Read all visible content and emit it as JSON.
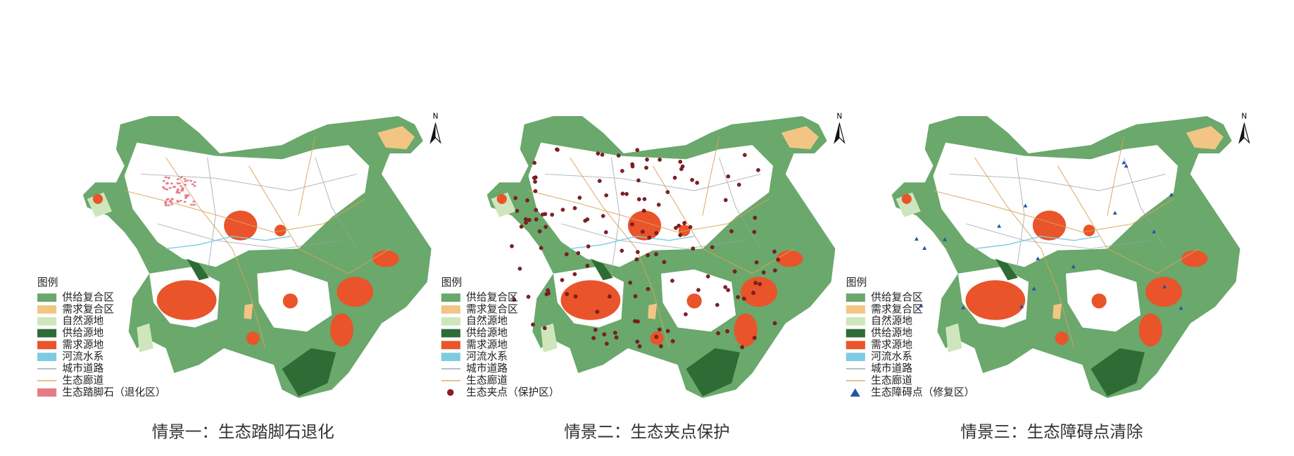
{
  "panels": [
    {
      "caption": "情景一：生态踏脚石退化",
      "legend_title": "图例",
      "north": "N",
      "legend": [
        {
          "label": "供给复合区",
          "color": "#6aa86c"
        },
        {
          "label": "需求复合区",
          "color": "#f2c584"
        },
        {
          "label": "自然源地",
          "color": "#cfe6bd"
        },
        {
          "label": "供给源地",
          "color": "#2f6b35"
        },
        {
          "label": "需求源地",
          "color": "#e9542b"
        },
        {
          "label": "河流水系",
          "color": "#7ccbe3"
        },
        {
          "label": "城市道路",
          "color": "#9aa0aa"
        },
        {
          "label": "生态廊道",
          "color": "#d9a35a"
        },
        {
          "label": "生态踏脚石（退化区）",
          "color": "#e57c88"
        }
      ]
    },
    {
      "caption": "情景二：生态夹点保护",
      "legend_title": "图例",
      "north": "N",
      "legend": [
        {
          "label": "供给复合区",
          "color": "#6aa86c"
        },
        {
          "label": "需求复合区",
          "color": "#f2c584"
        },
        {
          "label": "自然源地",
          "color": "#cfe6bd"
        },
        {
          "label": "供给源地",
          "color": "#2f6b35"
        },
        {
          "label": "需求源地",
          "color": "#e9542b"
        },
        {
          "label": "河流水系",
          "color": "#7ccbe3"
        },
        {
          "label": "城市道路",
          "color": "#9aa0aa"
        },
        {
          "label": "生态廊道",
          "color": "#d9a35a"
        },
        {
          "label": "生态夹点（保护区）",
          "color": "#8a1c22"
        }
      ]
    },
    {
      "caption": "情景三：生态障碍点清除",
      "legend_title": "图例",
      "north": "N",
      "legend": [
        {
          "label": "供给复合区",
          "color": "#6aa86c"
        },
        {
          "label": "需求复合区",
          "color": "#f2c584"
        },
        {
          "label": "自然源地",
          "color": "#cfe6bd"
        },
        {
          "label": "供给源地",
          "color": "#2f6b35"
        },
        {
          "label": "需求源地",
          "color": "#e9542b"
        },
        {
          "label": "河流水系",
          "color": "#7ccbe3"
        },
        {
          "label": "城市道路",
          "color": "#9aa0aa"
        },
        {
          "label": "生态廊道",
          "color": "#d9a35a"
        },
        {
          "label": "生态障碍点（修复区）",
          "color": "#2451a8"
        }
      ]
    }
  ]
}
